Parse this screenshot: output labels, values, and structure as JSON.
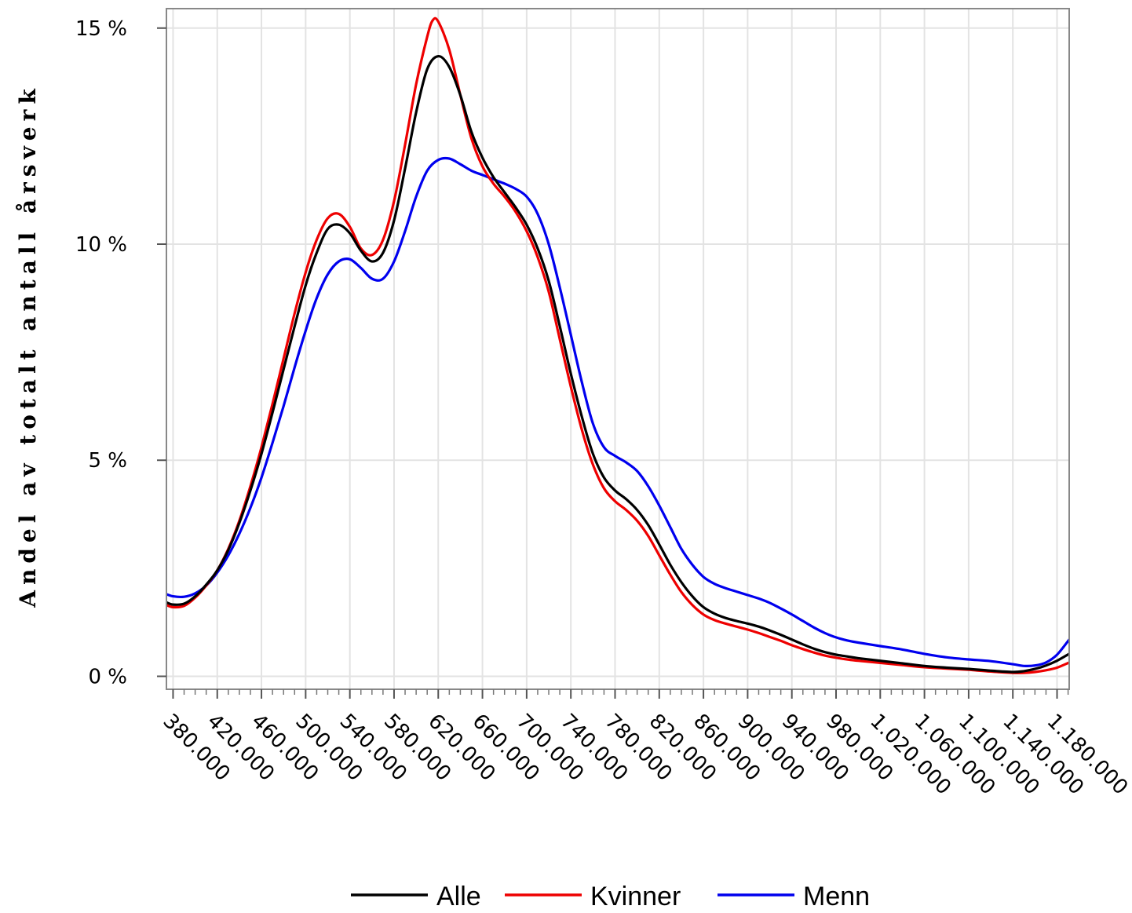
{
  "chart_data": {
    "type": "line",
    "title": "",
    "xlabel": "",
    "ylabel": "Andel av totalt antall årsverk",
    "xlim": [
      374000,
      1191000
    ],
    "ylim": [
      -0.003,
      0.1545
    ],
    "x_ticks": [
      380000,
      420000,
      460000,
      500000,
      540000,
      580000,
      620000,
      660000,
      700000,
      740000,
      780000,
      820000,
      860000,
      900000,
      940000,
      980000,
      1020000,
      1060000,
      1100000,
      1140000,
      1180000
    ],
    "x_tick_labels": [
      "380.000",
      "420.000",
      "460.000",
      "500.000",
      "540.000",
      "580.000",
      "620.000",
      "660.000",
      "700.000",
      "740.000",
      "780.000",
      "820.000",
      "860.000",
      "900.000",
      "940.000",
      "980.000",
      "1.020.000",
      "1.060.000",
      "1.100.000",
      "1.140.000",
      "1.180.000"
    ],
    "y_ticks": [
      0,
      0.05,
      0.1,
      0.15
    ],
    "y_tick_labels": [
      "0 %",
      "5 %",
      "10 %",
      "15 %"
    ],
    "grid": true,
    "legend_position": "bottom",
    "series": [
      {
        "name": "Alle",
        "color": "#000000",
        "x": [
          374000,
          380000,
          390000,
          400000,
          410000,
          420000,
          430000,
          440000,
          450000,
          460000,
          470000,
          480000,
          490000,
          500000,
          510000,
          520000,
          530000,
          540000,
          550000,
          560000,
          570000,
          580000,
          590000,
          600000,
          610000,
          620000,
          630000,
          640000,
          650000,
          660000,
          670000,
          680000,
          690000,
          700000,
          710000,
          720000,
          730000,
          740000,
          750000,
          760000,
          770000,
          780000,
          790000,
          800000,
          810000,
          820000,
          830000,
          840000,
          850000,
          860000,
          870000,
          880000,
          890000,
          900000,
          910000,
          920000,
          930000,
          940000,
          950000,
          960000,
          970000,
          980000,
          990000,
          1000000,
          1020000,
          1040000,
          1060000,
          1080000,
          1100000,
          1120000,
          1140000,
          1150000,
          1160000,
          1170000,
          1180000,
          1191000
        ],
        "y": [
          0.0171,
          0.0166,
          0.0168,
          0.0185,
          0.0212,
          0.0245,
          0.0292,
          0.0355,
          0.043,
          0.0515,
          0.061,
          0.071,
          0.081,
          0.0905,
          0.098,
          0.1035,
          0.1045,
          0.1025,
          0.0985,
          0.096,
          0.098,
          0.1055,
          0.1175,
          0.1305,
          0.1405,
          0.1435,
          0.141,
          0.1345,
          0.126,
          0.12,
          0.1155,
          0.112,
          0.1085,
          0.1045,
          0.099,
          0.0915,
          0.081,
          0.07,
          0.06,
          0.0515,
          0.046,
          0.043,
          0.041,
          0.0385,
          0.035,
          0.0305,
          0.0258,
          0.0218,
          0.0185,
          0.016,
          0.0145,
          0.0135,
          0.0128,
          0.0122,
          0.0115,
          0.0106,
          0.0096,
          0.0085,
          0.0074,
          0.0064,
          0.0056,
          0.005,
          0.0046,
          0.0042,
          0.0036,
          0.003,
          0.0024,
          0.002,
          0.0017,
          0.0013,
          0.001,
          0.0012,
          0.0017,
          0.0025,
          0.0036,
          0.0052
        ]
      },
      {
        "name": "Kvinner",
        "color": "#ee0000",
        "x": [
          374000,
          380000,
          390000,
          400000,
          410000,
          420000,
          430000,
          440000,
          450000,
          460000,
          470000,
          480000,
          490000,
          500000,
          510000,
          520000,
          530000,
          540000,
          550000,
          560000,
          570000,
          580000,
          590000,
          600000,
          610000,
          615000,
          620000,
          630000,
          640000,
          650000,
          660000,
          670000,
          680000,
          690000,
          700000,
          710000,
          720000,
          730000,
          740000,
          750000,
          760000,
          770000,
          780000,
          790000,
          800000,
          810000,
          820000,
          830000,
          840000,
          850000,
          860000,
          870000,
          880000,
          890000,
          900000,
          910000,
          920000,
          930000,
          940000,
          950000,
          960000,
          970000,
          980000,
          990000,
          1000000,
          1020000,
          1040000,
          1060000,
          1080000,
          1100000,
          1120000,
          1140000,
          1150000,
          1160000,
          1170000,
          1180000,
          1191000
        ],
        "y": [
          0.0165,
          0.016,
          0.0163,
          0.0182,
          0.021,
          0.0245,
          0.0295,
          0.036,
          0.044,
          0.053,
          0.063,
          0.0735,
          0.084,
          0.0935,
          0.101,
          0.106,
          0.107,
          0.104,
          0.099,
          0.0975,
          0.101,
          0.11,
          0.123,
          0.137,
          0.148,
          0.1518,
          0.1515,
          0.145,
          0.1345,
          0.1245,
          0.118,
          0.114,
          0.111,
          0.1075,
          0.103,
          0.097,
          0.089,
          0.078,
          0.067,
          0.057,
          0.049,
          0.0435,
          0.0405,
          0.0385,
          0.036,
          0.0325,
          0.028,
          0.0235,
          0.0195,
          0.0165,
          0.0143,
          0.013,
          0.0122,
          0.0115,
          0.0108,
          0.01,
          0.0091,
          0.0082,
          0.0072,
          0.0063,
          0.0055,
          0.0048,
          0.0043,
          0.0039,
          0.0036,
          0.0031,
          0.0026,
          0.0021,
          0.0018,
          0.0015,
          0.0011,
          0.0008,
          0.0008,
          0.001,
          0.0014,
          0.002,
          0.0032
        ]
      },
      {
        "name": "Menn",
        "color": "#0000ee",
        "x": [
          374000,
          380000,
          390000,
          400000,
          410000,
          420000,
          430000,
          440000,
          450000,
          460000,
          470000,
          480000,
          490000,
          500000,
          510000,
          520000,
          530000,
          540000,
          550000,
          560000,
          570000,
          580000,
          590000,
          600000,
          610000,
          620000,
          630000,
          640000,
          650000,
          660000,
          670000,
          680000,
          690000,
          700000,
          710000,
          720000,
          730000,
          740000,
          750000,
          760000,
          770000,
          780000,
          790000,
          800000,
          810000,
          820000,
          830000,
          840000,
          850000,
          860000,
          870000,
          880000,
          890000,
          900000,
          910000,
          920000,
          930000,
          940000,
          950000,
          960000,
          970000,
          980000,
          990000,
          1000000,
          1020000,
          1040000,
          1060000,
          1080000,
          1100000,
          1120000,
          1140000,
          1150000,
          1160000,
          1170000,
          1180000,
          1191000
        ],
        "y": [
          0.019,
          0.0185,
          0.0184,
          0.0192,
          0.021,
          0.024,
          0.028,
          0.033,
          0.039,
          0.046,
          0.054,
          0.0625,
          0.0715,
          0.08,
          0.0875,
          0.093,
          0.096,
          0.0965,
          0.0945,
          0.092,
          0.092,
          0.096,
          0.103,
          0.111,
          0.117,
          0.1195,
          0.1198,
          0.1185,
          0.117,
          0.116,
          0.115,
          0.114,
          0.1128,
          0.111,
          0.107,
          0.1,
          0.09,
          0.079,
          0.068,
          0.0585,
          0.053,
          0.051,
          0.0495,
          0.0475,
          0.044,
          0.0395,
          0.0345,
          0.0295,
          0.0258,
          0.023,
          0.0214,
          0.0204,
          0.0196,
          0.0188,
          0.018,
          0.017,
          0.0157,
          0.0143,
          0.0128,
          0.0113,
          0.01,
          0.009,
          0.0083,
          0.0078,
          0.007,
          0.0062,
          0.0052,
          0.0044,
          0.0039,
          0.0035,
          0.0028,
          0.0024,
          0.0025,
          0.0032,
          0.005,
          0.0085
        ]
      }
    ]
  }
}
